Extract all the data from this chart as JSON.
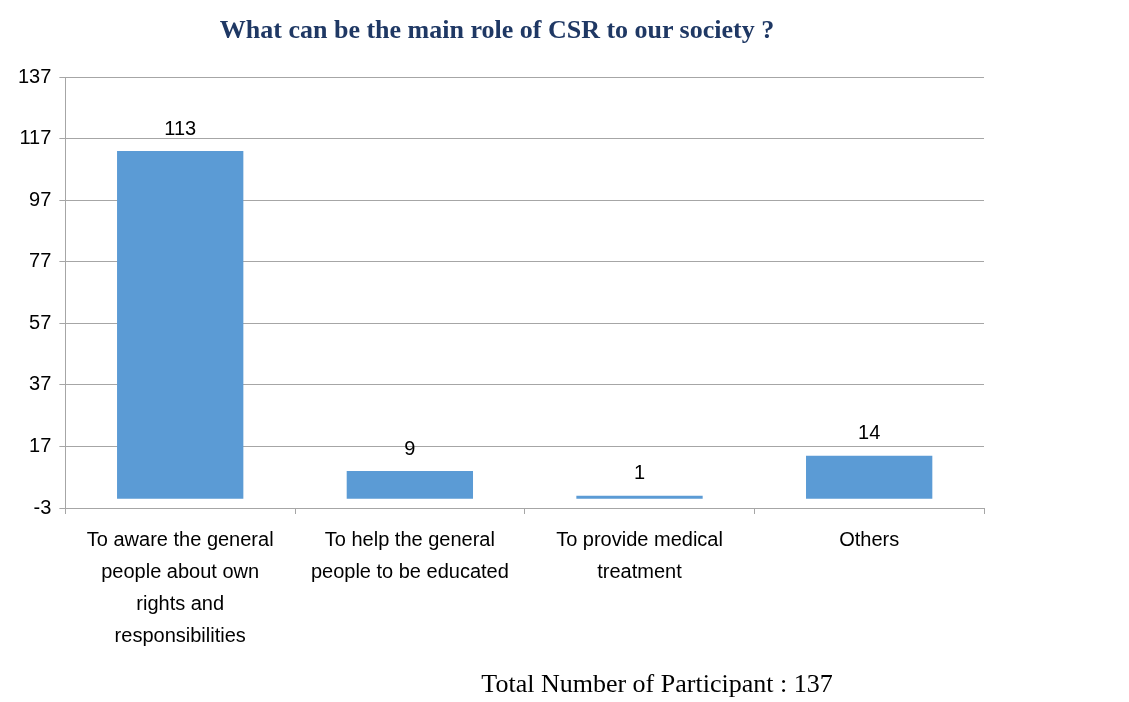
{
  "chart_data": {
    "type": "bar",
    "title": "What can be the main role of CSR to our society ?",
    "categories": [
      "To aware the general people about own rights and responsibilities",
      "To help the general people to be educated",
      "To provide medical treatment",
      "Others"
    ],
    "values": [
      113,
      9,
      1,
      14
    ],
    "color": "#5b9bd5",
    "ylim": [
      -3,
      137
    ],
    "yticks": [
      -3,
      17,
      37,
      57,
      77,
      97,
      117,
      137
    ],
    "grid": "y",
    "legend": false,
    "data_labels": true,
    "annotations": [
      "Total Number of Participant : 137"
    ]
  }
}
